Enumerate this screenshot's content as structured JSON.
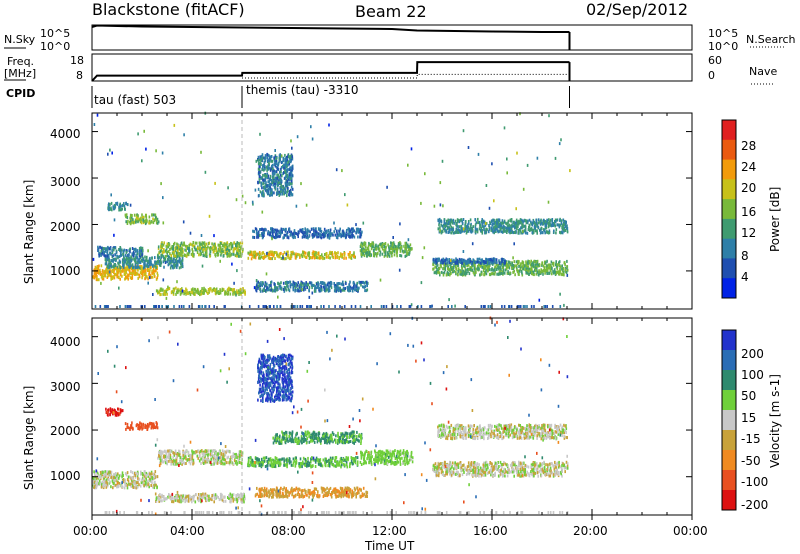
{
  "header": {
    "title": "Blackstone (fitACF)",
    "beam": "Beam 22",
    "date": "02/Sep/2012"
  },
  "top_panel": {
    "left_label": "N.Sky",
    "left_ticks": [
      "10^5",
      "10^0"
    ],
    "right_ticks": [
      "10^5",
      "10^0"
    ],
    "right_label": "N.Search"
  },
  "freq_panel": {
    "left_label_1": "Freq.",
    "left_label_2": "[MHz]",
    "left_ticks": [
      "18",
      "8"
    ],
    "right_ticks": [
      "60",
      "0"
    ],
    "right_label": "Nave"
  },
  "cpid": {
    "label": "CPID",
    "programs": [
      "tau (fast) 503",
      "themis (tau) -3310"
    ]
  },
  "colors": {
    "power": [
      "#0022e6",
      "#1f4fb0",
      "#2e7fa8",
      "#3f9b70",
      "#78b93a",
      "#c7c11a",
      "#f29b0b",
      "#ea5a10",
      "#e02020"
    ],
    "velocity": [
      "#2233cc",
      "#2a6db5",
      "#2f8a6e",
      "#6fcf3a",
      "#c8c8c8",
      "#c8a23a",
      "#f08a20",
      "#e85020",
      "#dd1111"
    ]
  },
  "chart_data": [
    {
      "type": "heatmap",
      "quantity": "Power",
      "ylabel": "Slant Range [km]",
      "colorbar_label": "Power [dB]",
      "colorbar_ticks": [
        "28",
        "24",
        "20",
        "16",
        "12",
        "8",
        "4"
      ],
      "yticks": [
        "4000",
        "3000",
        "2000",
        "1000"
      ],
      "ylim": [
        180,
        4400
      ],
      "xlim_hours": [
        0,
        24
      ],
      "data_end_hour": 19.1,
      "bands": [
        {
          "t0": 0.0,
          "t1": 2.6,
          "r0": 800,
          "r1": 1100,
          "v": 24
        },
        {
          "t0": 0.5,
          "t1": 3.6,
          "r0": 1050,
          "r1": 1300,
          "v": 12
        },
        {
          "t0": 2.6,
          "t1": 6.0,
          "r0": 1300,
          "r1": 1600,
          "v": 18
        },
        {
          "t0": 0.2,
          "t1": 2.0,
          "r0": 1300,
          "r1": 1500,
          "v": 10
        },
        {
          "t0": 0.6,
          "t1": 1.4,
          "r0": 2300,
          "r1": 2450,
          "v": 12
        },
        {
          "t0": 1.3,
          "t1": 2.6,
          "r0": 2000,
          "r1": 2200,
          "v": 18
        },
        {
          "t0": 2.5,
          "t1": 6.1,
          "r0": 480,
          "r1": 620,
          "v": 20
        },
        {
          "t0": 6.2,
          "t1": 10.5,
          "r0": 1250,
          "r1": 1400,
          "v": 22
        },
        {
          "t0": 6.4,
          "t1": 10.8,
          "r0": 1700,
          "r1": 1900,
          "v": 8
        },
        {
          "t0": 10.7,
          "t1": 12.8,
          "r0": 1300,
          "r1": 1600,
          "v": 16
        },
        {
          "t0": 6.6,
          "t1": 8.0,
          "r0": 2600,
          "r1": 3500,
          "v": 10
        },
        {
          "t0": 6.5,
          "t1": 11.0,
          "r0": 550,
          "r1": 750,
          "v": 10
        },
        {
          "t0": 13.8,
          "t1": 19.0,
          "r0": 1800,
          "r1": 2100,
          "v": 12
        },
        {
          "t0": 13.6,
          "t1": 19.0,
          "r0": 900,
          "r1": 1200,
          "v": 16
        },
        {
          "t0": 13.6,
          "t1": 16.5,
          "r0": 1150,
          "r1": 1250,
          "v": 8
        }
      ]
    },
    {
      "type": "heatmap",
      "quantity": "Velocity",
      "ylabel": "Slant Range [km]",
      "colorbar_label": "Velocity [m s-1]",
      "colorbar_ticks": [
        "200",
        "100",
        "50",
        "15",
        "-15",
        "-50",
        "-100",
        "-200"
      ],
      "yticks": [
        "4000",
        "3000",
        "2000",
        "1000"
      ],
      "ylim": [
        180,
        4400
      ],
      "xlim_hours": [
        0,
        24
      ],
      "data_end_hour": 19.1,
      "bands": [
        {
          "t0": 0.0,
          "t1": 2.6,
          "r0": 750,
          "r1": 1100,
          "v": 0
        },
        {
          "t0": 2.6,
          "t1": 6.0,
          "r0": 1250,
          "r1": 1550,
          "v": 0
        },
        {
          "t0": 0.5,
          "t1": 1.2,
          "r0": 2300,
          "r1": 2450,
          "v": -160
        },
        {
          "t0": 1.3,
          "t1": 2.6,
          "r0": 2000,
          "r1": 2150,
          "v": -120
        },
        {
          "t0": 2.5,
          "t1": 6.1,
          "r0": 450,
          "r1": 620,
          "v": 0
        },
        {
          "t0": 6.2,
          "t1": 10.6,
          "r0": 1200,
          "r1": 1400,
          "v": 30
        },
        {
          "t0": 7.2,
          "t1": 10.8,
          "r0": 1700,
          "r1": 1950,
          "v": 35
        },
        {
          "t0": 10.7,
          "t1": 12.8,
          "r0": 1250,
          "r1": 1550,
          "v": 20
        },
        {
          "t0": 6.6,
          "t1": 8.0,
          "r0": 2600,
          "r1": 3600,
          "v": 150
        },
        {
          "t0": 6.5,
          "t1": 11.0,
          "r0": 550,
          "r1": 750,
          "v": -30
        },
        {
          "t0": 13.8,
          "t1": 19.0,
          "r0": 1800,
          "r1": 2100,
          "v": 0
        },
        {
          "t0": 13.6,
          "t1": 19.0,
          "r0": 1000,
          "r1": 1300,
          "v": 0
        }
      ]
    },
    {
      "type": "line",
      "quantity": "N.Sky / N.Search",
      "x": [
        0,
        0.2,
        2,
        4,
        6,
        8,
        10,
        12,
        13,
        16,
        18,
        19.1
      ],
      "y_log10": [
        4.6,
        4.9,
        4.7,
        4.6,
        4.5,
        4.4,
        4.3,
        4.2,
        3.9,
        3.7,
        3.6,
        3.6
      ]
    },
    {
      "type": "line",
      "quantity": "Freq / Nave",
      "freq_x": [
        0,
        0.2,
        6,
        6.01,
        13,
        13.01,
        19.1
      ],
      "freq_y": [
        8,
        10,
        10,
        11,
        11,
        15,
        15
      ],
      "nave_x": [
        6,
        13,
        13.01,
        19.1
      ],
      "nave_y": [
        0,
        0,
        8,
        8
      ]
    }
  ],
  "xaxis": {
    "ticks": [
      "00:00",
      "04:00",
      "08:00",
      "12:00",
      "16:00",
      "20:00",
      "00:00"
    ],
    "label": "Time UT"
  }
}
